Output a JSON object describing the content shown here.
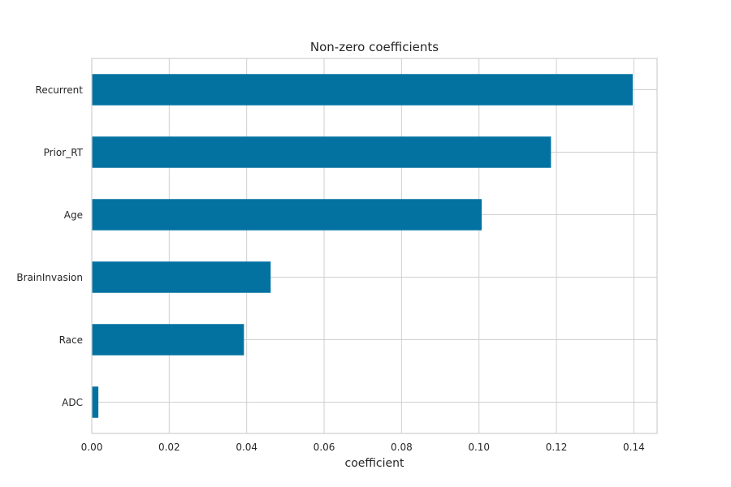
{
  "chart_data": {
    "type": "bar",
    "orientation": "horizontal",
    "title": "Non-zero coefficients",
    "xlabel": "coefficient",
    "ylabel": "",
    "categories": [
      "ADC",
      "Race",
      "BrainInvasion",
      "Age",
      "Prior_RT",
      "Recurrent"
    ],
    "values": [
      0.0017,
      0.0393,
      0.0462,
      0.1007,
      0.1186,
      0.1397
    ],
    "xlim": [
      0.0,
      0.146
    ],
    "xticks": [
      0.0,
      0.02,
      0.04,
      0.06,
      0.08,
      0.1,
      0.12,
      0.14
    ],
    "xtick_labels": [
      "0.00",
      "0.02",
      "0.04",
      "0.06",
      "0.08",
      "0.10",
      "0.12",
      "0.14"
    ],
    "grid": true,
    "legend": "none",
    "colors": {
      "bar": "#0372a1",
      "grid": "#d0d0d0",
      "axes_edge": "#d0d0d0",
      "text": "#262626"
    }
  }
}
